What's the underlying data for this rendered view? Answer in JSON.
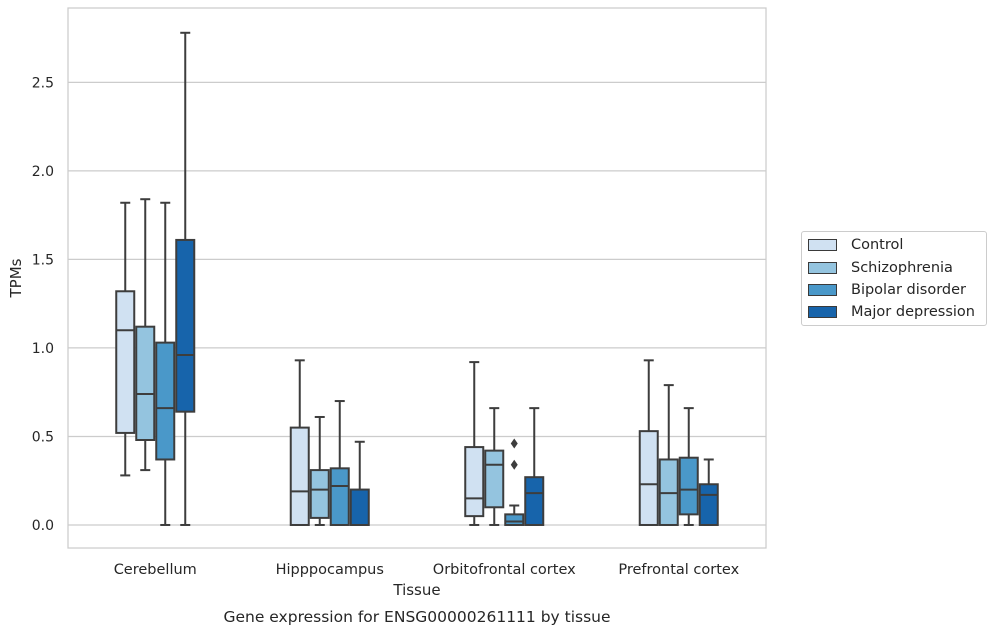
{
  "chart_data": {
    "type": "box",
    "caption": "Gene expression for ENSG00000261111 by tissue",
    "xlabel": "Tissue",
    "ylabel": "TPMs",
    "ylim": [
      -0.13,
      2.92
    ],
    "yticks": [
      0.0,
      0.5,
      1.0,
      1.5,
      2.0,
      2.5
    ],
    "ytick_labels": [
      "0.0",
      "0.5",
      "1.0",
      "1.5",
      "2.0",
      "2.5"
    ],
    "grid": "horizontal",
    "legend_position": "right",
    "categories": [
      "Cerebellum",
      "Hipppocampus",
      "Orbitofrontal cortex",
      "Prefrontal cortex"
    ],
    "series": [
      {
        "name": "Control",
        "color": "#d0e1f2",
        "boxes": [
          {
            "whislo": 0.28,
            "q1": 0.52,
            "med": 1.1,
            "q3": 1.32,
            "whishi": 1.82,
            "fliers": []
          },
          {
            "whislo": 0.0,
            "q1": 0.0,
            "med": 0.19,
            "q3": 0.55,
            "whishi": 0.93,
            "fliers": []
          },
          {
            "whislo": 0.0,
            "q1": 0.05,
            "med": 0.15,
            "q3": 0.44,
            "whishi": 0.92,
            "fliers": []
          },
          {
            "whislo": 0.0,
            "q1": 0.0,
            "med": 0.23,
            "q3": 0.53,
            "whishi": 0.93,
            "fliers": []
          }
        ]
      },
      {
        "name": "Schizophrenia",
        "color": "#94c4df",
        "boxes": [
          {
            "whislo": 0.31,
            "q1": 0.48,
            "med": 0.74,
            "q3": 1.12,
            "whishi": 1.84,
            "fliers": []
          },
          {
            "whislo": 0.0,
            "q1": 0.04,
            "med": 0.2,
            "q3": 0.31,
            "whishi": 0.61,
            "fliers": []
          },
          {
            "whislo": 0.0,
            "q1": 0.1,
            "med": 0.34,
            "q3": 0.42,
            "whishi": 0.66,
            "fliers": []
          },
          {
            "whislo": 0.0,
            "q1": 0.0,
            "med": 0.18,
            "q3": 0.37,
            "whishi": 0.79,
            "fliers": []
          }
        ]
      },
      {
        "name": "Bipolar disorder",
        "color": "#4a98c9",
        "boxes": [
          {
            "whislo": 0.0,
            "q1": 0.37,
            "med": 0.66,
            "q3": 1.03,
            "whishi": 1.82,
            "fliers": []
          },
          {
            "whislo": 0.0,
            "q1": 0.0,
            "med": 0.22,
            "q3": 0.32,
            "whishi": 0.7,
            "fliers": []
          },
          {
            "whislo": 0.0,
            "q1": 0.0,
            "med": 0.02,
            "q3": 0.06,
            "whishi": 0.11,
            "fliers": [
              0.34,
              0.46
            ]
          },
          {
            "whislo": 0.0,
            "q1": 0.06,
            "med": 0.2,
            "q3": 0.38,
            "whishi": 0.66,
            "fliers": []
          }
        ]
      },
      {
        "name": "Major depression",
        "color": "#1764ab",
        "boxes": [
          {
            "whislo": 0.0,
            "q1": 0.64,
            "med": 0.96,
            "q3": 1.61,
            "whishi": 2.78,
            "fliers": []
          },
          {
            "whislo": 0.0,
            "q1": 0.0,
            "med": 0.0,
            "q3": 0.2,
            "whishi": 0.47,
            "fliers": []
          },
          {
            "whislo": 0.0,
            "q1": 0.0,
            "med": 0.18,
            "q3": 0.27,
            "whishi": 0.66,
            "fliers": []
          },
          {
            "whislo": 0.0,
            "q1": 0.0,
            "med": 0.17,
            "q3": 0.23,
            "whishi": 0.37,
            "fliers": []
          }
        ]
      }
    ]
  }
}
